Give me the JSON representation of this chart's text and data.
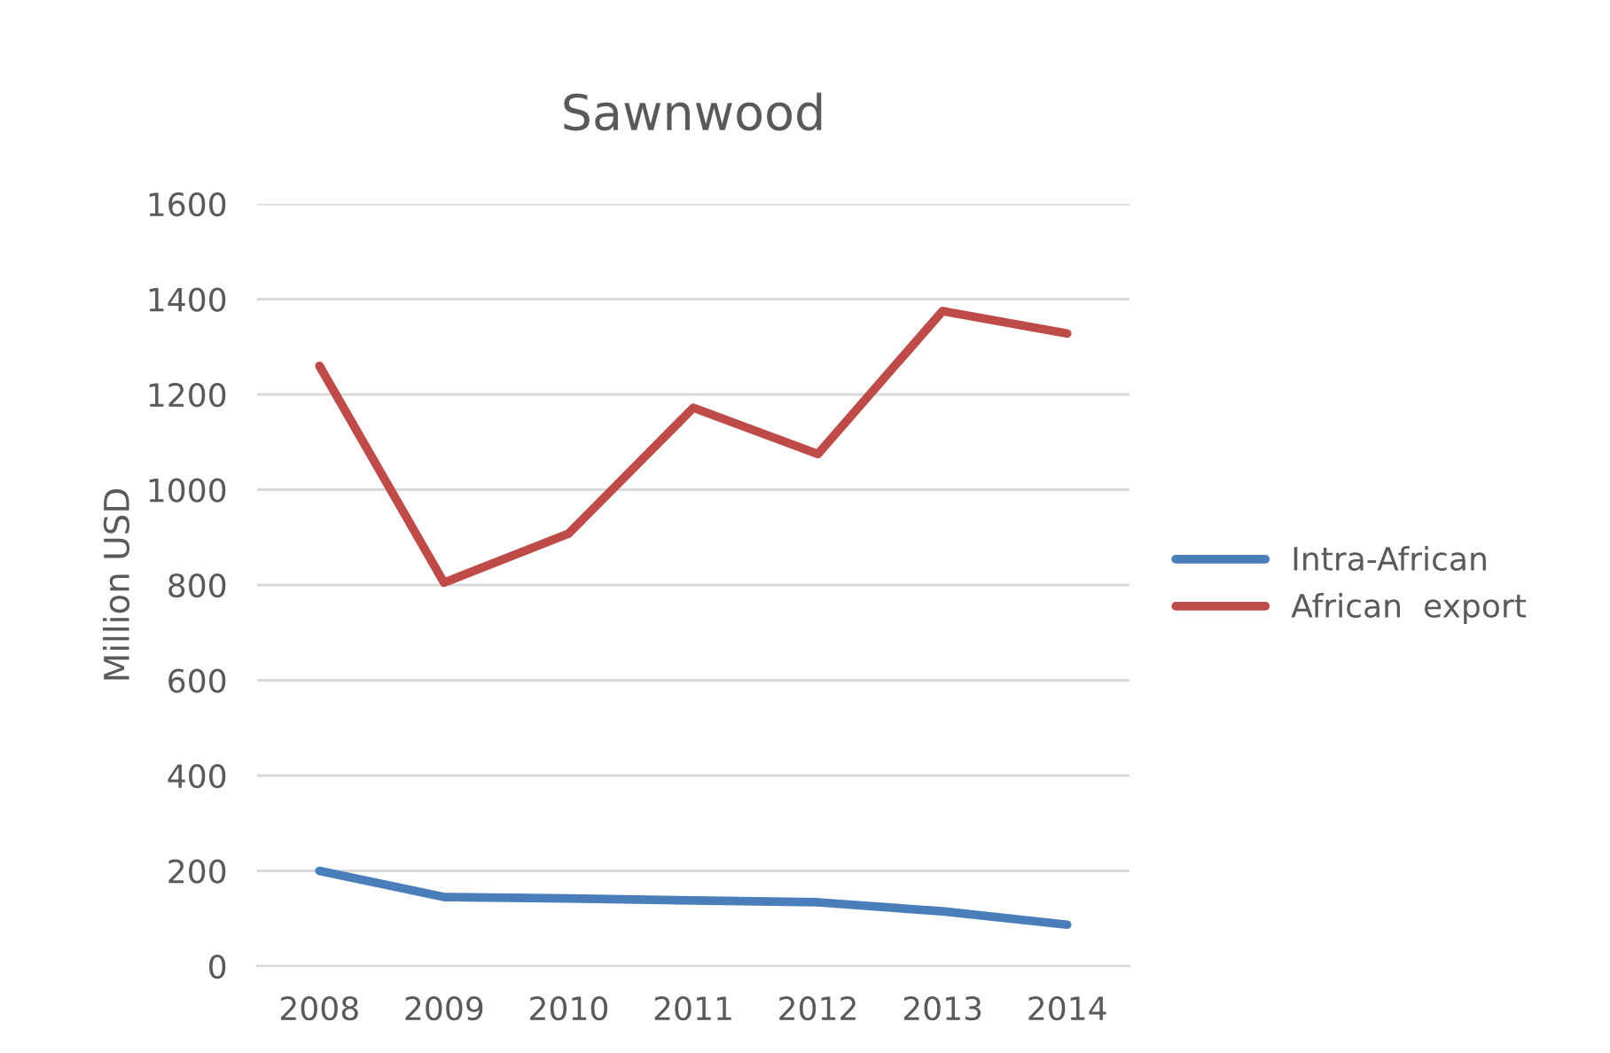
{
  "chart_data": {
    "type": "line",
    "title": "Sawnwood",
    "ylabel": "Million USD",
    "categories": [
      "2008",
      "2009",
      "2010",
      "2011",
      "2012",
      "2013",
      "2014"
    ],
    "series": [
      {
        "name": "Intra-African",
        "color": "#4a7ebb",
        "values": [
          200,
          145,
          142,
          138,
          134,
          115,
          87
        ]
      },
      {
        "name": "African  export",
        "color": "#be4b48",
        "values": [
          1260,
          805,
          908,
          1172,
          1075,
          1375,
          1328
        ]
      }
    ],
    "ylim": [
      0,
      1600
    ],
    "yticks": [
      0,
      200,
      400,
      600,
      800,
      1000,
      1200,
      1400,
      1600
    ],
    "grid": "y",
    "legend": "right",
    "marker": "none",
    "line_style": "solid"
  }
}
